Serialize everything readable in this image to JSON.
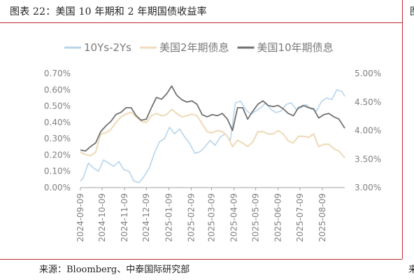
{
  "header": {
    "title": "图表 22：美国 10 年期和 2 年期国债收益率",
    "right_edge_char": "图"
  },
  "footer": {
    "source": "来源：Bloomberg、中泰国际研究部",
    "right_edge_char": "来"
  },
  "colors": {
    "spread": "#b8d4ea",
    "us2y": "#efdcbc",
    "us10y": "#707070",
    "rule": "#c0282d",
    "axis_text": "#808080"
  },
  "chart_data": {
    "type": "line",
    "legend_position": "top",
    "grid": false,
    "x_ticks": [
      "2024-09-09",
      "2024-10-09",
      "2024-11-09",
      "2024-12-09",
      "2025-01-09",
      "2025-02-09",
      "2025-03-09",
      "2025-04-09",
      "2025-05-09",
      "2025-06-09",
      "2025-07-09",
      "2025-08-09"
    ],
    "x_range": [
      "2024-09-09",
      "2025-09-09"
    ],
    "y_left": {
      "ticks": [
        "0.00%",
        "0.10%",
        "0.20%",
        "0.30%",
        "0.40%",
        "0.50%",
        "0.60%",
        "0.70%"
      ],
      "range": [
        0,
        0.7
      ],
      "series": [
        "10Ys-2Ys"
      ]
    },
    "y_right": {
      "ticks": [
        "3.00%",
        "3.50%",
        "4.00%",
        "4.50%",
        "5.00%"
      ],
      "range": [
        3.0,
        5.0
      ],
      "series": [
        "美国2年期债息",
        "美国10年期债息"
      ]
    },
    "series": [
      {
        "name": "10Ys-2Ys",
        "axis": "left",
        "points": [
          [
            "2024-09-09",
            0.04
          ],
          [
            "2024-09-13",
            0.06
          ],
          [
            "2024-09-20",
            0.15
          ],
          [
            "2024-09-27",
            0.12
          ],
          [
            "2024-10-04",
            0.1
          ],
          [
            "2024-10-11",
            0.17
          ],
          [
            "2024-10-18",
            0.15
          ],
          [
            "2024-10-25",
            0.13
          ],
          [
            "2024-11-01",
            0.16
          ],
          [
            "2024-11-08",
            0.11
          ],
          [
            "2024-11-15",
            0.1
          ],
          [
            "2024-11-22",
            0.04
          ],
          [
            "2024-11-29",
            0.03
          ],
          [
            "2024-12-06",
            0.07
          ],
          [
            "2024-12-13",
            0.12
          ],
          [
            "2024-12-20",
            0.21
          ],
          [
            "2024-12-27",
            0.28
          ],
          [
            "2025-01-03",
            0.3
          ],
          [
            "2025-01-10",
            0.37
          ],
          [
            "2025-01-17",
            0.33
          ],
          [
            "2025-01-24",
            0.36
          ],
          [
            "2025-01-31",
            0.31
          ],
          [
            "2025-02-07",
            0.27
          ],
          [
            "2025-02-14",
            0.21
          ],
          [
            "2025-02-21",
            0.22
          ],
          [
            "2025-02-28",
            0.25
          ],
          [
            "2025-03-07",
            0.29
          ],
          [
            "2025-03-14",
            0.26
          ],
          [
            "2025-03-21",
            0.31
          ],
          [
            "2025-03-28",
            0.33
          ],
          [
            "2025-04-04",
            0.29
          ],
          [
            "2025-04-11",
            0.52
          ],
          [
            "2025-04-18",
            0.53
          ],
          [
            "2025-04-25",
            0.48
          ],
          [
            "2025-05-02",
            0.45
          ],
          [
            "2025-05-09",
            0.47
          ],
          [
            "2025-05-16",
            0.49
          ],
          [
            "2025-05-23",
            0.52
          ],
          [
            "2025-05-30",
            0.48
          ],
          [
            "2025-06-06",
            0.46
          ],
          [
            "2025-06-13",
            0.47
          ],
          [
            "2025-06-20",
            0.51
          ],
          [
            "2025-06-27",
            0.52
          ],
          [
            "2025-07-04",
            0.48
          ],
          [
            "2025-07-11",
            0.49
          ],
          [
            "2025-07-18",
            0.51
          ],
          [
            "2025-07-25",
            0.48
          ],
          [
            "2025-08-01",
            0.47
          ],
          [
            "2025-08-08",
            0.53
          ],
          [
            "2025-08-15",
            0.55
          ],
          [
            "2025-08-22",
            0.54
          ],
          [
            "2025-08-29",
            0.6
          ],
          [
            "2025-09-05",
            0.59
          ],
          [
            "2025-09-09",
            0.56
          ]
        ]
      },
      {
        "name": "美国2年期债息",
        "axis": "right",
        "points": [
          [
            "2024-09-09",
            3.62
          ],
          [
            "2024-09-16",
            3.58
          ],
          [
            "2024-09-23",
            3.56
          ],
          [
            "2024-09-30",
            3.62
          ],
          [
            "2024-10-07",
            3.94
          ],
          [
            "2024-10-14",
            3.96
          ],
          [
            "2024-10-21",
            4.02
          ],
          [
            "2024-10-28",
            4.14
          ],
          [
            "2024-11-04",
            4.24
          ],
          [
            "2024-11-11",
            4.29
          ],
          [
            "2024-11-18",
            4.32
          ],
          [
            "2024-11-25",
            4.24
          ],
          [
            "2024-12-02",
            4.16
          ],
          [
            "2024-12-09",
            4.14
          ],
          [
            "2024-12-16",
            4.26
          ],
          [
            "2024-12-23",
            4.3
          ],
          [
            "2024-12-30",
            4.26
          ],
          [
            "2025-01-06",
            4.28
          ],
          [
            "2025-01-13",
            4.37
          ],
          [
            "2025-01-20",
            4.3
          ],
          [
            "2025-01-27",
            4.24
          ],
          [
            "2025-02-03",
            4.26
          ],
          [
            "2025-02-10",
            4.29
          ],
          [
            "2025-02-17",
            4.26
          ],
          [
            "2025-02-24",
            4.12
          ],
          [
            "2025-03-03",
            3.98
          ],
          [
            "2025-03-10",
            3.96
          ],
          [
            "2025-03-17",
            4.0
          ],
          [
            "2025-03-24",
            3.98
          ],
          [
            "2025-03-31",
            3.9
          ],
          [
            "2025-04-07",
            3.72
          ],
          [
            "2025-04-14",
            3.83
          ],
          [
            "2025-04-21",
            3.78
          ],
          [
            "2025-04-28",
            3.72
          ],
          [
            "2025-05-05",
            3.8
          ],
          [
            "2025-05-12",
            3.98
          ],
          [
            "2025-05-19",
            3.98
          ],
          [
            "2025-05-26",
            3.94
          ],
          [
            "2025-06-02",
            3.94
          ],
          [
            "2025-06-09",
            4.0
          ],
          [
            "2025-06-16",
            3.94
          ],
          [
            "2025-06-23",
            3.82
          ],
          [
            "2025-06-30",
            3.78
          ],
          [
            "2025-07-07",
            3.9
          ],
          [
            "2025-07-14",
            3.9
          ],
          [
            "2025-07-21",
            3.88
          ],
          [
            "2025-07-28",
            3.94
          ],
          [
            "2025-08-04",
            3.72
          ],
          [
            "2025-08-11",
            3.76
          ],
          [
            "2025-08-18",
            3.76
          ],
          [
            "2025-08-25",
            3.68
          ],
          [
            "2025-09-01",
            3.64
          ],
          [
            "2025-09-09",
            3.52
          ]
        ]
      },
      {
        "name": "美国10年期债息",
        "axis": "right",
        "points": [
          [
            "2024-09-09",
            3.66
          ],
          [
            "2024-09-16",
            3.64
          ],
          [
            "2024-09-23",
            3.72
          ],
          [
            "2024-09-30",
            3.78
          ],
          [
            "2024-10-07",
            3.98
          ],
          [
            "2024-10-14",
            4.08
          ],
          [
            "2024-10-21",
            4.16
          ],
          [
            "2024-10-28",
            4.28
          ],
          [
            "2024-11-04",
            4.32
          ],
          [
            "2024-11-11",
            4.4
          ],
          [
            "2024-11-18",
            4.4
          ],
          [
            "2024-11-25",
            4.26
          ],
          [
            "2024-12-02",
            4.18
          ],
          [
            "2024-12-09",
            4.2
          ],
          [
            "2024-12-16",
            4.4
          ],
          [
            "2024-12-23",
            4.58
          ],
          [
            "2024-12-30",
            4.55
          ],
          [
            "2025-01-06",
            4.64
          ],
          [
            "2025-01-13",
            4.78
          ],
          [
            "2025-01-20",
            4.62
          ],
          [
            "2025-01-27",
            4.54
          ],
          [
            "2025-02-03",
            4.5
          ],
          [
            "2025-02-10",
            4.52
          ],
          [
            "2025-02-17",
            4.46
          ],
          [
            "2025-02-24",
            4.28
          ],
          [
            "2025-03-03",
            4.24
          ],
          [
            "2025-03-10",
            4.28
          ],
          [
            "2025-03-17",
            4.26
          ],
          [
            "2025-03-24",
            4.3
          ],
          [
            "2025-03-31",
            4.2
          ],
          [
            "2025-04-07",
            4.0
          ],
          [
            "2025-04-14",
            4.4
          ],
          [
            "2025-04-21",
            4.4
          ],
          [
            "2025-04-28",
            4.2
          ],
          [
            "2025-05-05",
            4.34
          ],
          [
            "2025-05-12",
            4.46
          ],
          [
            "2025-05-19",
            4.52
          ],
          [
            "2025-05-26",
            4.44
          ],
          [
            "2025-06-02",
            4.42
          ],
          [
            "2025-06-09",
            4.44
          ],
          [
            "2025-06-16",
            4.38
          ],
          [
            "2025-06-23",
            4.3
          ],
          [
            "2025-06-30",
            4.26
          ],
          [
            "2025-07-07",
            4.4
          ],
          [
            "2025-07-14",
            4.44
          ],
          [
            "2025-07-21",
            4.4
          ],
          [
            "2025-07-28",
            4.38
          ],
          [
            "2025-08-04",
            4.22
          ],
          [
            "2025-08-11",
            4.28
          ],
          [
            "2025-08-18",
            4.3
          ],
          [
            "2025-08-25",
            4.24
          ],
          [
            "2025-09-01",
            4.2
          ],
          [
            "2025-09-09",
            4.04
          ]
        ]
      }
    ]
  }
}
